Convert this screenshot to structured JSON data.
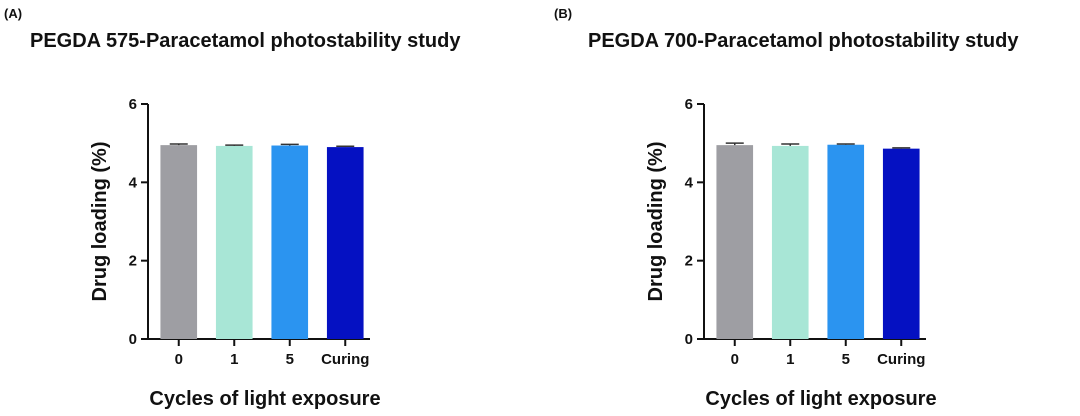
{
  "chart_data": [
    {
      "panel": "(A)",
      "type": "bar",
      "title": "PEGDA 575-Paracetamol photostability study",
      "xlabel": "Cycles of light exposure",
      "ylabel": "Drug loading (%)",
      "categories": [
        "0",
        "1",
        "5",
        "Curing"
      ],
      "values": [
        4.95,
        4.93,
        4.94,
        4.9
      ],
      "errors": [
        0.03,
        0.02,
        0.03,
        0.02
      ],
      "colors": [
        "#9e9ea3",
        "#a8e6d6",
        "#2b94f0",
        "#0511c2"
      ],
      "ylim": [
        0,
        6
      ],
      "yticks": [
        0,
        2,
        4,
        6
      ],
      "grid": false,
      "legend": "none"
    },
    {
      "panel": "(B)",
      "type": "bar",
      "title": "PEGDA 700-Paracetamol photostability study",
      "xlabel": "Cycles of light exposure",
      "ylabel": "Drug loading (%)",
      "categories": [
        "0",
        "1",
        "5",
        "Curing"
      ],
      "values": [
        4.95,
        4.93,
        4.96,
        4.86
      ],
      "errors": [
        0.05,
        0.05,
        0.02,
        0.02
      ],
      "colors": [
        "#9e9ea3",
        "#a8e6d6",
        "#2b94f0",
        "#0511c2"
      ],
      "ylim": [
        0,
        6
      ],
      "yticks": [
        0,
        2,
        4,
        6
      ],
      "grid": false,
      "legend": "none"
    }
  ]
}
